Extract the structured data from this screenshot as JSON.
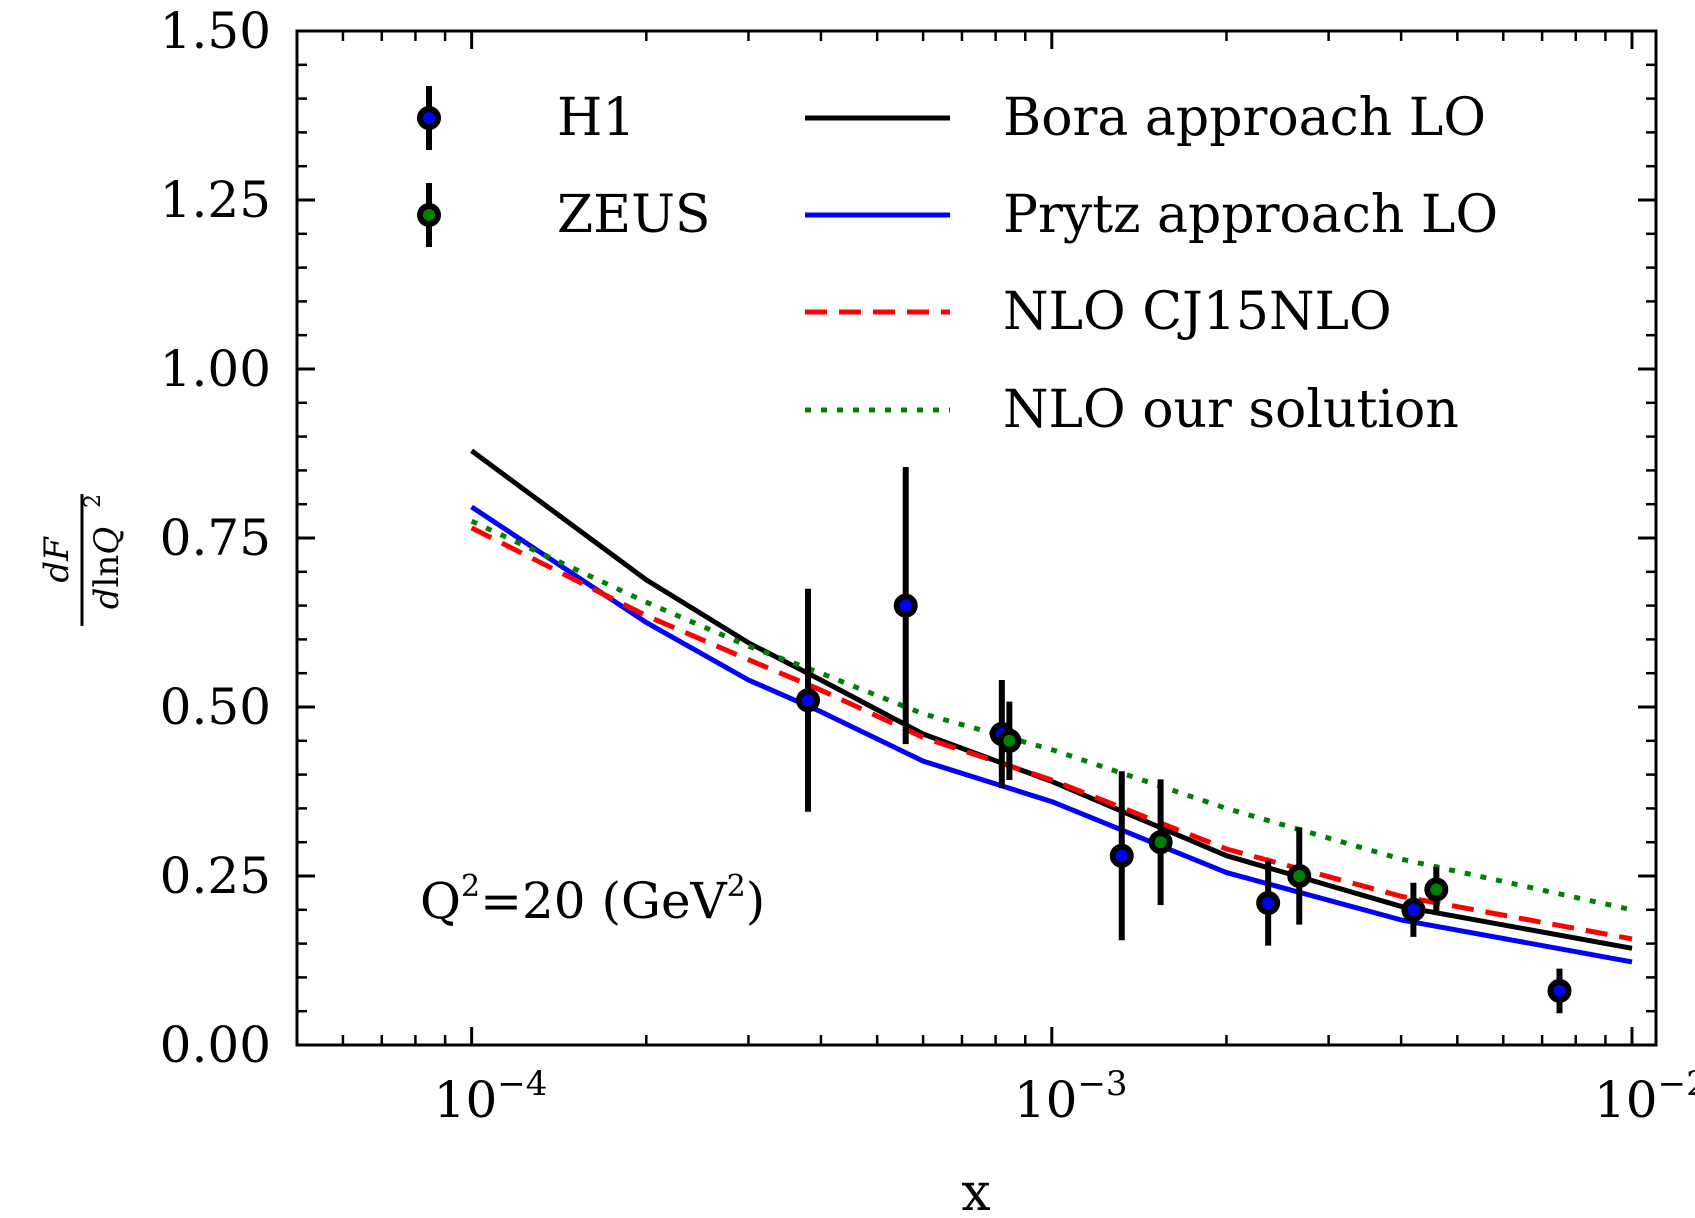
{
  "chart_data": {
    "type": "line",
    "title": "",
    "xlabel": "x",
    "ylabel": "dF / d ln Q^2",
    "ylabel_parts": {
      "numerator": "dF",
      "denominator_prefix": "d",
      "denominator_ln": "ln",
      "denominator_var": "Q",
      "denominator_sup": "2"
    },
    "xscale": "log",
    "xlim": [
      5e-05,
      0.011
    ],
    "ylim": [
      0.0,
      1.5
    ],
    "grid": false,
    "x_ticks": [
      {
        "value": 0.0001,
        "base": "10",
        "exp": "−4"
      },
      {
        "value": 0.001,
        "base": "10",
        "exp": "−3"
      },
      {
        "value": 0.01,
        "base": "10",
        "exp": "−2"
      }
    ],
    "y_ticks": [
      {
        "value": 0.0,
        "label": "0.00"
      },
      {
        "value": 0.25,
        "label": "0.25"
      },
      {
        "value": 0.5,
        "label": "0.50"
      },
      {
        "value": 0.75,
        "label": "0.75"
      },
      {
        "value": 1.0,
        "label": "1.00"
      },
      {
        "value": 1.25,
        "label": "1.25"
      },
      {
        "value": 1.5,
        "label": "1.50"
      }
    ],
    "annotation": {
      "text_main": "Q",
      "sup1": "2",
      "text_mid": "=20 (GeV",
      "sup2": "2",
      "text_end": ")",
      "x": 0.00013,
      "y": 0.22
    },
    "legend_placement": "top",
    "series": [
      {
        "name": "Bora approach LO",
        "kind": "line",
        "color": "#000000",
        "dash": "solid",
        "x": [
          0.0001,
          0.0002,
          0.0003,
          0.0004,
          0.0006,
          0.001,
          0.002,
          0.004,
          0.01
        ],
        "y": [
          0.879,
          0.688,
          0.595,
          0.54,
          0.46,
          0.39,
          0.28,
          0.205,
          0.143
        ]
      },
      {
        "name": "Prytz approach LO",
        "kind": "line",
        "color": "#0000ff",
        "dash": "solid",
        "x": [
          0.0001,
          0.0002,
          0.0003,
          0.0004,
          0.0006,
          0.001,
          0.002,
          0.004,
          0.01
        ],
        "y": [
          0.796,
          0.625,
          0.54,
          0.493,
          0.42,
          0.36,
          0.255,
          0.185,
          0.123
        ]
      },
      {
        "name": "NLO CJ15NLO",
        "kind": "line",
        "color": "#ff0000",
        "dash": "dashed",
        "x": [
          0.0001,
          0.0002,
          0.0003,
          0.0004,
          0.0006,
          0.001,
          0.002,
          0.004,
          0.01
        ],
        "y": [
          0.765,
          0.635,
          0.57,
          0.525,
          0.455,
          0.392,
          0.29,
          0.22,
          0.157
        ]
      },
      {
        "name": "NLO our solution",
        "kind": "line",
        "color": "#008000",
        "dash": "dotted",
        "x": [
          0.0001,
          0.0002,
          0.0003,
          0.0004,
          0.0006,
          0.001,
          0.002,
          0.004,
          0.01
        ],
        "y": [
          0.775,
          0.655,
          0.59,
          0.55,
          0.49,
          0.437,
          0.35,
          0.275,
          0.2
        ]
      },
      {
        "name": "H1",
        "kind": "errorbar",
        "color": "#0000ff",
        "points": [
          {
            "x": 0.00038,
            "y": 0.51,
            "err": 0.165
          },
          {
            "x": 0.00056,
            "y": 0.65,
            "err": 0.205
          },
          {
            "x": 0.00082,
            "y": 0.46,
            "err": 0.08
          },
          {
            "x": 0.00132,
            "y": 0.28,
            "err": 0.125
          },
          {
            "x": 0.00236,
            "y": 0.21,
            "err": 0.063
          },
          {
            "x": 0.0042,
            "y": 0.2,
            "err": 0.04
          },
          {
            "x": 0.0075,
            "y": 0.08,
            "err": 0.033
          }
        ]
      },
      {
        "name": "ZEUS",
        "kind": "errorbar",
        "color": "#008000",
        "points": [
          {
            "x": 0.000845,
            "y": 0.45,
            "err": 0.058
          },
          {
            "x": 0.00154,
            "y": 0.3,
            "err": 0.093
          },
          {
            "x": 0.00267,
            "y": 0.25,
            "err": 0.072
          },
          {
            "x": 0.0046,
            "y": 0.23,
            "err": 0.033
          }
        ]
      }
    ],
    "legend": [
      {
        "label": "H1",
        "kind": "errorbar",
        "color": "#0000ff"
      },
      {
        "label": "ZEUS",
        "kind": "errorbar",
        "color": "#008000"
      },
      {
        "label": "Bora approach LO",
        "kind": "line",
        "color": "#000000",
        "dash": "solid"
      },
      {
        "label": "Prytz approach LO",
        "kind": "line",
        "color": "#0000ff",
        "dash": "solid"
      },
      {
        "label": "NLO CJ15NLO",
        "kind": "line",
        "color": "#ff0000",
        "dash": "dashed"
      },
      {
        "label": "NLO our solution",
        "kind": "line",
        "color": "#008000",
        "dash": "dotted"
      }
    ]
  }
}
